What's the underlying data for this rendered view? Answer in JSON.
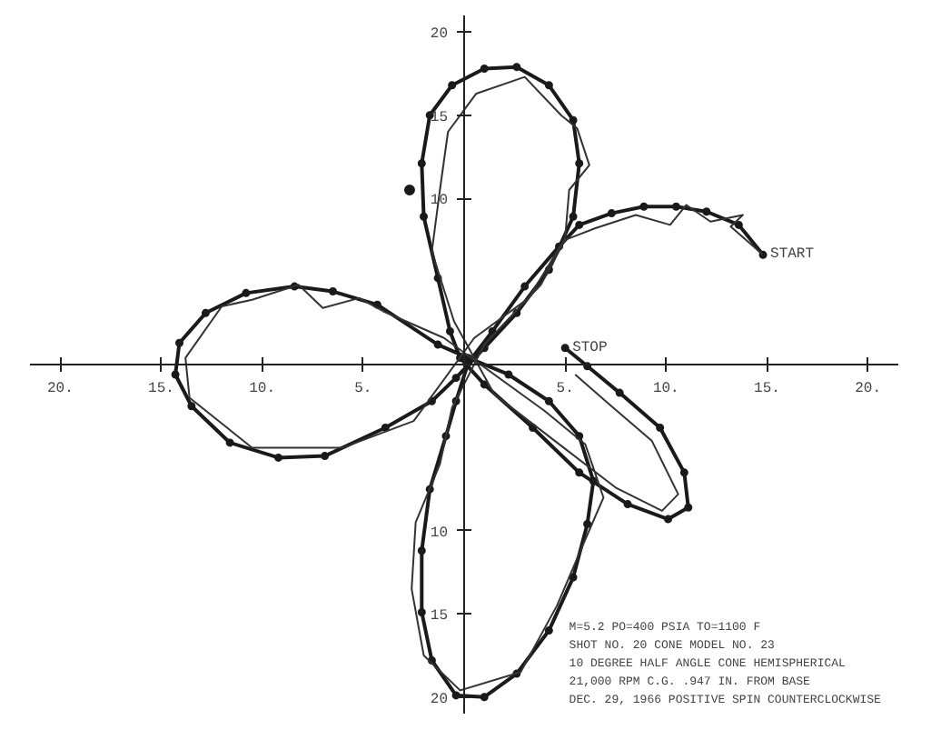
{
  "chart_data": {
    "type": "line",
    "xlim": [
      -21.5,
      21.5
    ],
    "ylim": [
      -21,
      21
    ],
    "xticks": [
      {
        "value": -20,
        "label": "20."
      },
      {
        "value": -15,
        "label": "15."
      },
      {
        "value": -10,
        "label": "10."
      },
      {
        "value": -5,
        "label": "5."
      },
      {
        "value": 5,
        "label": "5."
      },
      {
        "value": 10,
        "label": "10."
      },
      {
        "value": 15,
        "label": "15."
      },
      {
        "value": 20,
        "label": "20."
      }
    ],
    "yticks": [
      {
        "value": -20,
        "label": "20"
      },
      {
        "value": -15,
        "label": "15"
      },
      {
        "value": -10,
        "label": "10"
      },
      {
        "value": 10,
        "label": "10"
      },
      {
        "value": 15,
        "label": "15"
      },
      {
        "value": 20,
        "label": "20"
      }
    ],
    "grid": false,
    "series": [
      {
        "marker": "circle",
        "line_style": "solid",
        "color": "#1a1a1a",
        "x": [
          14.8,
          13.6,
          12.0,
          10.5,
          8.9,
          7.3,
          5.7,
          4.7,
          3.0,
          1.4,
          0.2,
          -0.4,
          -0.9,
          -1.7,
          -2.1,
          -2.1,
          -1.6,
          -0.4,
          1.0,
          2.6,
          4.2,
          5.4,
          6.1,
          6.4,
          5.7,
          4.2,
          2.2,
          0.2,
          -1.3,
          -4.3,
          -6.5,
          -8.4,
          -10.8,
          -12.8,
          -14.1,
          -14.3,
          -13.5,
          -11.6,
          -9.2,
          -6.9,
          -3.9,
          -1.6,
          -0.4,
          1.0,
          2.6,
          4.2,
          5.4,
          5.7,
          5.4,
          4.2,
          2.6,
          1.0,
          -0.6,
          -1.7,
          -2.1,
          -2.0,
          -1.3,
          -0.7,
          -0.2,
          1.0,
          3.4,
          5.7,
          8.1,
          10.1,
          11.1,
          10.9,
          9.7,
          7.7,
          6.1,
          5.0
        ],
        "values": [
          6.6,
          8.4,
          9.2,
          9.5,
          9.5,
          9.1,
          8.4,
          7.1,
          4.7,
          2.0,
          0.1,
          -2.2,
          -4.3,
          -7.5,
          -11.2,
          -14.9,
          -17.8,
          -19.9,
          -20.0,
          -18.6,
          -16.0,
          -12.8,
          -9.6,
          -7.0,
          -4.3,
          -2.2,
          -0.6,
          0.4,
          1.2,
          3.6,
          4.4,
          4.7,
          4.3,
          3.1,
          1.3,
          -0.6,
          -2.5,
          -4.7,
          -5.6,
          -5.5,
          -3.8,
          -2.2,
          -0.8,
          1.0,
          3.1,
          5.7,
          8.9,
          12.1,
          14.7,
          16.8,
          17.9,
          17.8,
          16.8,
          15.0,
          12.1,
          8.9,
          5.2,
          2.0,
          0.4,
          -1.2,
          -3.8,
          -6.5,
          -8.4,
          -9.3,
          -8.6,
          -6.5,
          -3.8,
          -1.7,
          -0.1,
          1.0
        ]
      },
      {
        "marker": "none",
        "line_style": "solid",
        "color": "#333333",
        "x": [
          14.8,
          13.2,
          13.8,
          12.2,
          11.0,
          10.2,
          8.5,
          6.5,
          5.0,
          3.8,
          1.0,
          -0.6,
          -1.2,
          -2.4,
          -2.6,
          -2.0,
          -0.2,
          2.8,
          4.6,
          5.9,
          6.9,
          6.0,
          4.0,
          -1.0,
          -4.0,
          -5.2,
          -7.0,
          -8.2,
          -10.5,
          -12.0,
          -13.8,
          -13.6,
          -10.5,
          -6.0,
          -2.5,
          0.5,
          3.2,
          5.0,
          5.2,
          6.2,
          5.6,
          4.8,
          3.0,
          0.6,
          -0.8,
          -1.2,
          -1.6,
          -0.5,
          1.5,
          4.5,
          7.5,
          9.8,
          10.6,
          9.3,
          7.2,
          5.5
        ],
        "values": [
          6.6,
          8.3,
          9.0,
          8.6,
          9.6,
          8.4,
          9.0,
          8.2,
          7.5,
          4.8,
          1.2,
          -2.6,
          -6.0,
          -9.5,
          -13.5,
          -17.5,
          -19.6,
          -18.5,
          -14.5,
          -10.8,
          -8.0,
          -4.8,
          -2.8,
          1.6,
          3.2,
          4.0,
          3.4,
          4.8,
          3.9,
          3.5,
          0.4,
          -2.0,
          -5.0,
          -5.0,
          -3.4,
          1.6,
          4.0,
          7.6,
          10.5,
          12.0,
          14.2,
          15.0,
          17.3,
          16.3,
          14.0,
          10.5,
          6.8,
          2.6,
          -1.8,
          -4.6,
          -7.4,
          -8.8,
          -7.8,
          -4.6,
          -2.4,
          -0.6
        ]
      },
      {
        "type": "scatter",
        "marker": "circle",
        "color": "#1a1a1a",
        "x": [
          -2.7
        ],
        "values": [
          10.5
        ]
      }
    ],
    "annotations": [
      {
        "text": "START",
        "x": 14.8,
        "y": 6.6
      },
      {
        "text": "STOP",
        "x": 5.0,
        "y": 1.0
      },
      "M=5.2  PO=400 PSIA  TO=1100 F",
      "SHOT NO. 20 CONE MODEL NO. 23",
      "10 DEGREE HALF ANGLE CONE HEMISPHERICAL",
      "21,000 RPM  C.G.  .947 IN. FROM BASE",
      "DEC. 29, 1966  POSITIVE SPIN COUNTERCLOCKWISE"
    ]
  }
}
